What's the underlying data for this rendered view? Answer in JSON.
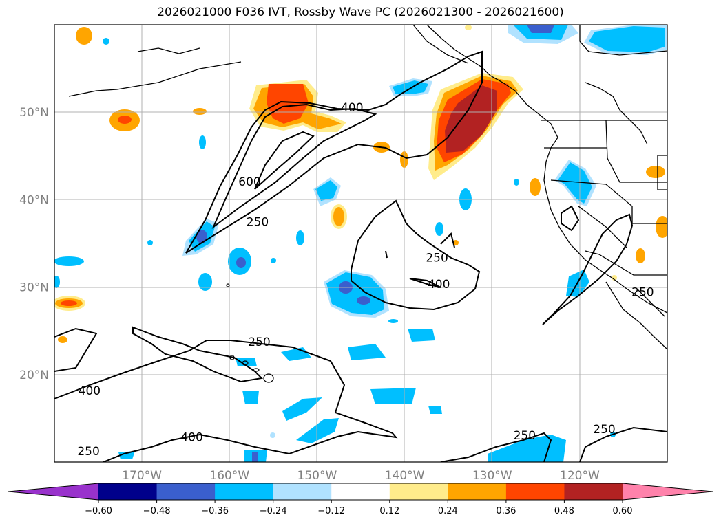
{
  "title": "2026021000 F036 IVT, Rossby Wave PC (2026021300 - 2026021600)",
  "map": {
    "extent": {
      "lon_min": -180,
      "lon_max": -110,
      "lat_min": 10,
      "lat_max": 60
    },
    "lat_labels": [
      {
        "value": 50,
        "text": "50°N"
      },
      {
        "value": 40,
        "text": "40°N"
      },
      {
        "value": 30,
        "text": "30°N"
      },
      {
        "value": 20,
        "text": "20°N"
      }
    ],
    "lon_labels": [
      {
        "value": -170,
        "text": "170°W"
      },
      {
        "value": -160,
        "text": "160°W"
      },
      {
        "value": -150,
        "text": "150°W"
      },
      {
        "value": -140,
        "text": "140°W"
      },
      {
        "value": -130,
        "text": "130°W"
      },
      {
        "value": -120,
        "text": "120°W"
      }
    ],
    "contour_labels": [
      {
        "text": "400",
        "lon": -146,
        "lat": 50.1
      },
      {
        "text": "600",
        "lon": -157.7,
        "lat": 41.6
      },
      {
        "text": "250",
        "lon": -156.8,
        "lat": 37.0
      },
      {
        "text": "250",
        "lon": -136.3,
        "lat": 32.9
      },
      {
        "text": "400",
        "lon": -136.1,
        "lat": 29.9
      },
      {
        "text": "250",
        "lon": -112.8,
        "lat": 29.0
      },
      {
        "text": "250",
        "lon": -156.6,
        "lat": 23.3
      },
      {
        "text": "400",
        "lon": -176.0,
        "lat": 17.7
      },
      {
        "text": "400",
        "lon": -164.3,
        "lat": 12.4
      },
      {
        "text": "250",
        "lon": -176.1,
        "lat": 10.8
      },
      {
        "text": "250",
        "lon": -126.3,
        "lat": 12.6
      },
      {
        "text": "250",
        "lon": -117.2,
        "lat": 13.3
      }
    ]
  },
  "colorbar": {
    "colors": [
      "#9932cc",
      "#00008b",
      "#3a5fcd",
      "#00bfff",
      "#b0e2ff",
      "#ffffff",
      "#ffec8b",
      "#ffa500",
      "#ff4500",
      "#b22222",
      "#ff82ab"
    ],
    "labels": [
      "−0.60",
      "−0.48",
      "−0.36",
      "−0.24",
      "−0.12",
      "0.12",
      "0.24",
      "0.36",
      "0.48",
      "0.60"
    ]
  }
}
